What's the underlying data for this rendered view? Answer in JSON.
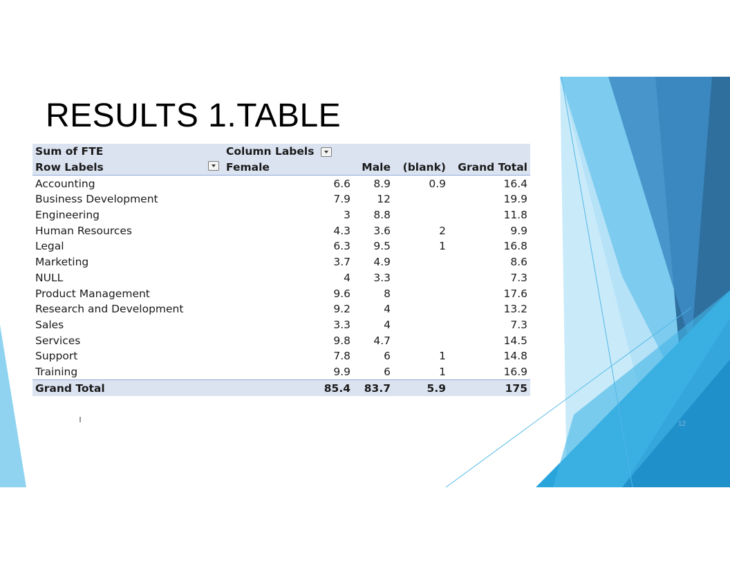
{
  "slide": {
    "title": "RESULTS 1.TABLE",
    "page_number": "12"
  },
  "pivot": {
    "value_label": "Sum of FTE",
    "column_labels": "Column Labels",
    "row_labels": "Row Labels",
    "columns": [
      "Female",
      "Male",
      "(blank)",
      "Grand Total"
    ],
    "rows": [
      {
        "label": "Accounting",
        "female": "6.6",
        "male": "8.9",
        "blank": "0.9",
        "total": "16.4"
      },
      {
        "label": "Business Development",
        "female": "7.9",
        "male": "12",
        "blank": "",
        "total": "19.9"
      },
      {
        "label": "Engineering",
        "female": "3",
        "male": "8.8",
        "blank": "",
        "total": "11.8"
      },
      {
        "label": "Human Resources",
        "female": "4.3",
        "male": "3.6",
        "blank": "2",
        "total": "9.9"
      },
      {
        "label": "Legal",
        "female": "6.3",
        "male": "9.5",
        "blank": "1",
        "total": "16.8"
      },
      {
        "label": "Marketing",
        "female": "3.7",
        "male": "4.9",
        "blank": "",
        "total": "8.6"
      },
      {
        "label": "NULL",
        "female": "4",
        "male": "3.3",
        "blank": "",
        "total": "7.3"
      },
      {
        "label": "Product Management",
        "female": "9.6",
        "male": "8",
        "blank": "",
        "total": "17.6"
      },
      {
        "label": "Research and Development",
        "female": "9.2",
        "male": "4",
        "blank": "",
        "total": "13.2"
      },
      {
        "label": "Sales",
        "female": "3.3",
        "male": "4",
        "blank": "",
        "total": "7.3"
      },
      {
        "label": "Services",
        "female": "9.8",
        "male": "4.7",
        "blank": "",
        "total": "14.5"
      },
      {
        "label": "Support",
        "female": "7.8",
        "male": "6",
        "blank": "1",
        "total": "14.8"
      },
      {
        "label": "Training",
        "female": "9.9",
        "male": "6",
        "blank": "1",
        "total": "16.9"
      }
    ],
    "grand_total": {
      "label": "Grand Total",
      "female": "85.4",
      "male": "83.7",
      "blank": "5.9",
      "total": "175"
    }
  },
  "colors": {
    "header_fill": "#dbe3f1",
    "accent_blue": "#2a9fd8",
    "dark_blue": "#2e6f9e"
  }
}
